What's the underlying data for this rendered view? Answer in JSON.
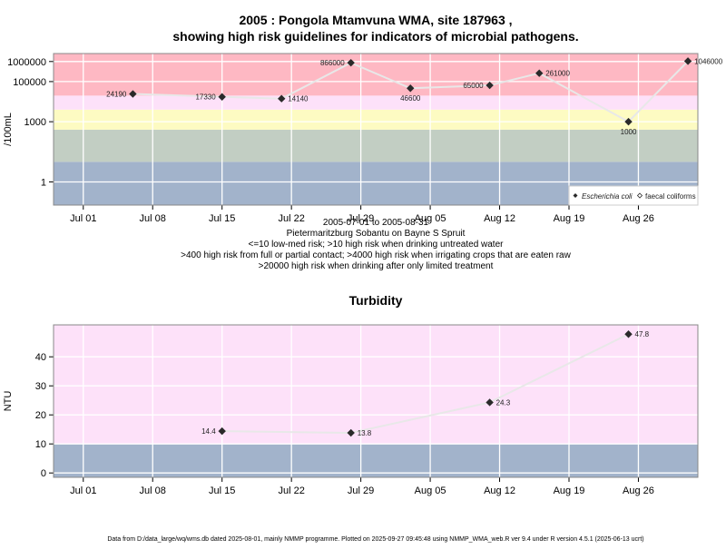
{
  "chart_data": [
    {
      "type": "scatter",
      "title_line1": "2005 : Pongola Mtamvuna WMA, site 187963 ,",
      "title_line2": "showing high risk guidelines for indicators of microbial pathogens.",
      "ylabel": "/100mL",
      "y_scale": "log",
      "ylim": [
        0.07,
        2500000
      ],
      "y_ticks": [
        {
          "value": 1,
          "label": "1"
        },
        {
          "value": 1000,
          "label": "1000"
        },
        {
          "value": 100000,
          "label": "100000"
        },
        {
          "value": 1000000,
          "label": "1000000"
        }
      ],
      "x_ticks": [
        {
          "date": "2005-07-01",
          "label": "Jul 01"
        },
        {
          "date": "2005-07-08",
          "label": "Jul 08"
        },
        {
          "date": "2005-07-15",
          "label": "Jul 15"
        },
        {
          "date": "2005-07-22",
          "label": "Jul 22"
        },
        {
          "date": "2005-07-29",
          "label": "Jul 29"
        },
        {
          "date": "2005-08-05",
          "label": "Aug 05"
        },
        {
          "date": "2005-08-12",
          "label": "Aug 12"
        },
        {
          "date": "2005-08-19",
          "label": "Aug 19"
        },
        {
          "date": "2005-08-26",
          "label": "Aug 26"
        }
      ],
      "xlim": [
        "2005-06-28",
        "2005-09-01"
      ],
      "grid": true,
      "bands": [
        {
          "from": 0.07,
          "to": 10,
          "color": "#a2b3cb"
        },
        {
          "from": 10,
          "to": 400,
          "color": "#c2cec3"
        },
        {
          "from": 400,
          "to": 4000,
          "color": "#fdfbc2"
        },
        {
          "from": 4000,
          "to": 20000,
          "color": "#fde1f9"
        },
        {
          "from": 20000,
          "to": 2500000,
          "color": "#feb8c3"
        }
      ],
      "series": [
        {
          "name": "Escherichia coli",
          "marker": "filled-diamond",
          "line_color": "#e8e8e8",
          "points": [
            {
              "date": "2005-07-06",
              "value": 24190,
              "label": "24190"
            },
            {
              "date": "2005-07-15",
              "value": 17330,
              "label": "17330"
            },
            {
              "date": "2005-07-21",
              "value": 14140,
              "label": "14140"
            },
            {
              "date": "2005-07-28",
              "value": 866000,
              "label": "866000"
            },
            {
              "date": "2005-08-03",
              "value": 46600,
              "label": "46600"
            },
            {
              "date": "2005-08-11",
              "value": 65000,
              "label": "65000"
            },
            {
              "date": "2005-08-16",
              "value": 261000,
              "label": "261000"
            },
            {
              "date": "2005-08-25",
              "value": 1000,
              "label": "1000"
            },
            {
              "date": "2005-08-31",
              "value": 1046000,
              "label": "1046000"
            }
          ]
        }
      ],
      "legend": {
        "position": "bottom-right",
        "entries": [
          {
            "label": "Escherichia coli",
            "marker": "filled-diamond",
            "italic": true
          },
          {
            "label": "faecal coliforms",
            "marker": "open-diamond",
            "italic": false
          }
        ]
      },
      "caption_lines": [
        "2005-07-01 to 2005-08-31",
        "Pietermaritzburg Sobantu on Bayne S Spruit",
        "<=10 low-med risk; >10 high risk when drinking untreated water",
        ">400 high risk from full or partial contact; >4000 high risk when irrigating crops that are eaten raw",
        ">20000 high risk when drinking after only limited treatment"
      ]
    },
    {
      "type": "scatter",
      "title": "Turbidity",
      "ylabel": "NTU",
      "y_scale": "linear",
      "ylim": [
        -1.5,
        51
      ],
      "y_ticks": [
        {
          "value": 0,
          "label": "0"
        },
        {
          "value": 10,
          "label": "10"
        },
        {
          "value": 20,
          "label": "20"
        },
        {
          "value": 30,
          "label": "30"
        },
        {
          "value": 40,
          "label": "40"
        }
      ],
      "x_ticks": [
        {
          "date": "2005-07-01",
          "label": "Jul 01"
        },
        {
          "date": "2005-07-08",
          "label": "Jul 08"
        },
        {
          "date": "2005-07-15",
          "label": "Jul 15"
        },
        {
          "date": "2005-07-22",
          "label": "Jul 22"
        },
        {
          "date": "2005-07-29",
          "label": "Jul 29"
        },
        {
          "date": "2005-08-05",
          "label": "Aug 05"
        },
        {
          "date": "2005-08-12",
          "label": "Aug 12"
        },
        {
          "date": "2005-08-19",
          "label": "Aug 19"
        },
        {
          "date": "2005-08-26",
          "label": "Aug 26"
        }
      ],
      "xlim": [
        "2005-06-28",
        "2005-09-01"
      ],
      "grid": true,
      "bands": [
        {
          "from": -1.5,
          "to": 10,
          "color": "#a2b3cb"
        },
        {
          "from": 10,
          "to": 51,
          "color": "#fde1f9"
        }
      ],
      "series": [
        {
          "marker": "filled-diamond",
          "line_color": "#e8e8e8",
          "points": [
            {
              "date": "2005-07-15",
              "value": 14.4,
              "label": "14.4"
            },
            {
              "date": "2005-07-28",
              "value": 13.8,
              "label": "13.8"
            },
            {
              "date": "2005-08-11",
              "value": 24.3,
              "label": "24.3"
            },
            {
              "date": "2005-08-25",
              "value": 47.8,
              "label": "47.8"
            }
          ]
        }
      ]
    }
  ],
  "footer": "Data from D:/data_large/wq/wms.db dated 2025-08-01, mainly NMMP programme. Plotted on 2025-09-27 09:45:48 using NMMP_WMA_web.R ver 9.4 under R version 4.5.1 (2025-06-13 ucrt)"
}
